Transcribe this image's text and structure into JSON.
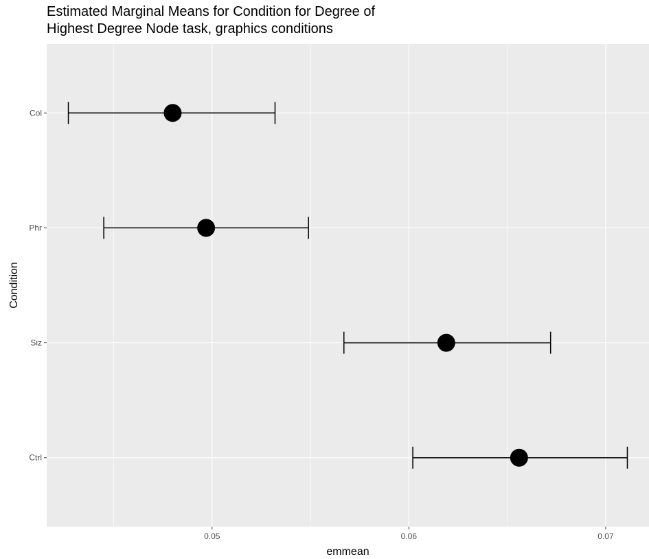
{
  "chart_data": {
    "type": "scatter",
    "subtype": "point-errorbar",
    "title_lines": [
      "Estimated Marginal Means for Condition for Degree of",
      "Highest Degree Node task, graphics conditions"
    ],
    "xlabel": "emmean",
    "ylabel": "Condition",
    "xlim": [
      0.0416,
      0.0722
    ],
    "x_ticks": [
      0.05,
      0.06,
      0.07
    ],
    "x_tick_labels": [
      "0.05",
      "0.06",
      "0.07"
    ],
    "categories": [
      "Col",
      "Phr",
      "Siz",
      "Ctrl"
    ],
    "points": [
      {
        "condition": "Col",
        "emmean": 0.048,
        "lower": 0.0427,
        "upper": 0.0532
      },
      {
        "condition": "Phr",
        "emmean": 0.0497,
        "lower": 0.0445,
        "upper": 0.0549
      },
      {
        "condition": "Siz",
        "emmean": 0.0619,
        "lower": 0.0567,
        "upper": 0.0672
      },
      {
        "condition": "Ctrl",
        "emmean": 0.0656,
        "lower": 0.0602,
        "upper": 0.0711
      }
    ],
    "grid": true,
    "legend": "none",
    "colors": {
      "panel_background": "#ebebeb",
      "grid_major": "#ffffff",
      "marks": "#000000",
      "tick_text": "#4d4d4d"
    }
  }
}
